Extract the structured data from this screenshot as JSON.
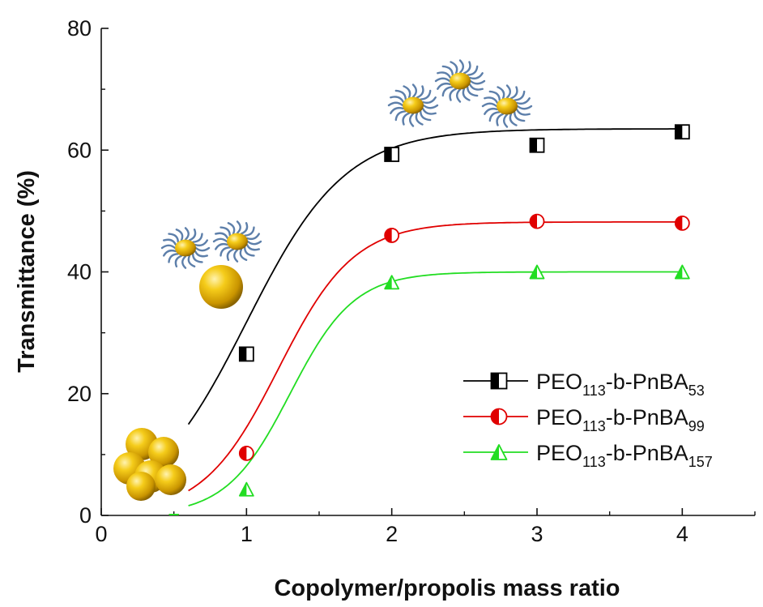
{
  "chart_data": {
    "type": "scatter",
    "xlabel": "Copolymer/propolis mass ratio",
    "ylabel": "Transmittance (%)",
    "xlim": [
      0,
      4.5
    ],
    "ylim": [
      0,
      80
    ],
    "x_ticks": [
      0,
      1,
      2,
      3,
      4
    ],
    "y_ticks": [
      0,
      20,
      40,
      60,
      80
    ],
    "grid": false,
    "legend_position": "bottom-right",
    "series": [
      {
        "name": "PEO113-b-PnBA53",
        "legend_parts": [
          {
            "text": "PEO",
            "sub": false
          },
          {
            "text": "113",
            "sub": true
          },
          {
            "text": "-b-PnBA",
            "sub": false
          },
          {
            "text": "53",
            "sub": true
          }
        ],
        "color": "#000000",
        "marker": "half-filled-square",
        "x": [
          0.5,
          1,
          2,
          3,
          4
        ],
        "y": [
          0,
          26.5,
          59.3,
          60.8,
          63.0
        ],
        "fit": {
          "L": 63.5,
          "x0": 1.0,
          "s": 0.34,
          "start": 0.6
        }
      },
      {
        "name": "PEO113-b-PnBA99",
        "legend_parts": [
          {
            "text": "PEO",
            "sub": false
          },
          {
            "text": "113",
            "sub": true
          },
          {
            "text": "-b-PnBA",
            "sub": false
          },
          {
            "text": "99",
            "sub": true
          }
        ],
        "color": "#e00000",
        "marker": "half-filled-circle",
        "x": [
          0.5,
          1,
          2,
          3,
          4
        ],
        "y": [
          0,
          10.2,
          46.0,
          48.3,
          48.0
        ],
        "fit": {
          "L": 48.2,
          "x0": 1.22,
          "s": 0.26,
          "start": 0.6
        }
      },
      {
        "name": "PEO113-b-PnBA157",
        "legend_parts": [
          {
            "text": "PEO",
            "sub": false
          },
          {
            "text": "113",
            "sub": true
          },
          {
            "text": "-b-PnBA",
            "sub": false
          },
          {
            "text": "157",
            "sub": true
          }
        ],
        "color": "#22dd22",
        "marker": "half-filled-triangle",
        "x": [
          0.5,
          1,
          2,
          3,
          4
        ],
        "y": [
          0,
          4.3,
          38.3,
          40.0,
          40.0
        ],
        "fit": {
          "L": 40.0,
          "x0": 1.3,
          "s": 0.22,
          "start": 0.6
        }
      }
    ]
  },
  "colors": {
    "particle": "#f2c40a",
    "corona": "#5d7faa"
  }
}
